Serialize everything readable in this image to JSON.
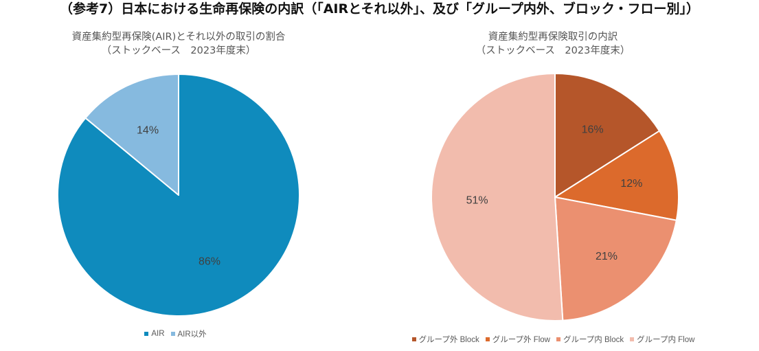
{
  "title": "（参考7）日本における生命再保険の内訳（「AIRとそれ以外」、及び「グループ内外、ブロック・フロー別」）",
  "chart_data": [
    {
      "type": "pie",
      "title_lines": [
        "資産集約型再保険(AIR)とそれ以外の取引の割合",
        "（ストックベース　2023年度末）"
      ],
      "categories": [
        "AIR",
        "AIR以外"
      ],
      "values": [
        86,
        14
      ],
      "data_labels": [
        "86%",
        "14%"
      ],
      "colors": [
        "#0F8BBD",
        "#86BADF"
      ],
      "start": "12 o'clock, clockwise",
      "legend": "bottom"
    },
    {
      "type": "pie",
      "title_lines": [
        "資産集約型再保険取引の内訳",
        "（ストックベース　2023年度末）"
      ],
      "categories": [
        "グループ外 Block",
        "グループ外 Flow",
        "グループ内 Block",
        "グループ内 Flow"
      ],
      "values": [
        16,
        12,
        21,
        51
      ],
      "data_labels": [
        "16%",
        "12%",
        "21%",
        "51%"
      ],
      "colors": [
        "#B5562A",
        "#DC6A2C",
        "#EB9070",
        "#F2BCAD"
      ],
      "start": "12 o'clock, clockwise",
      "legend": "bottom"
    }
  ]
}
